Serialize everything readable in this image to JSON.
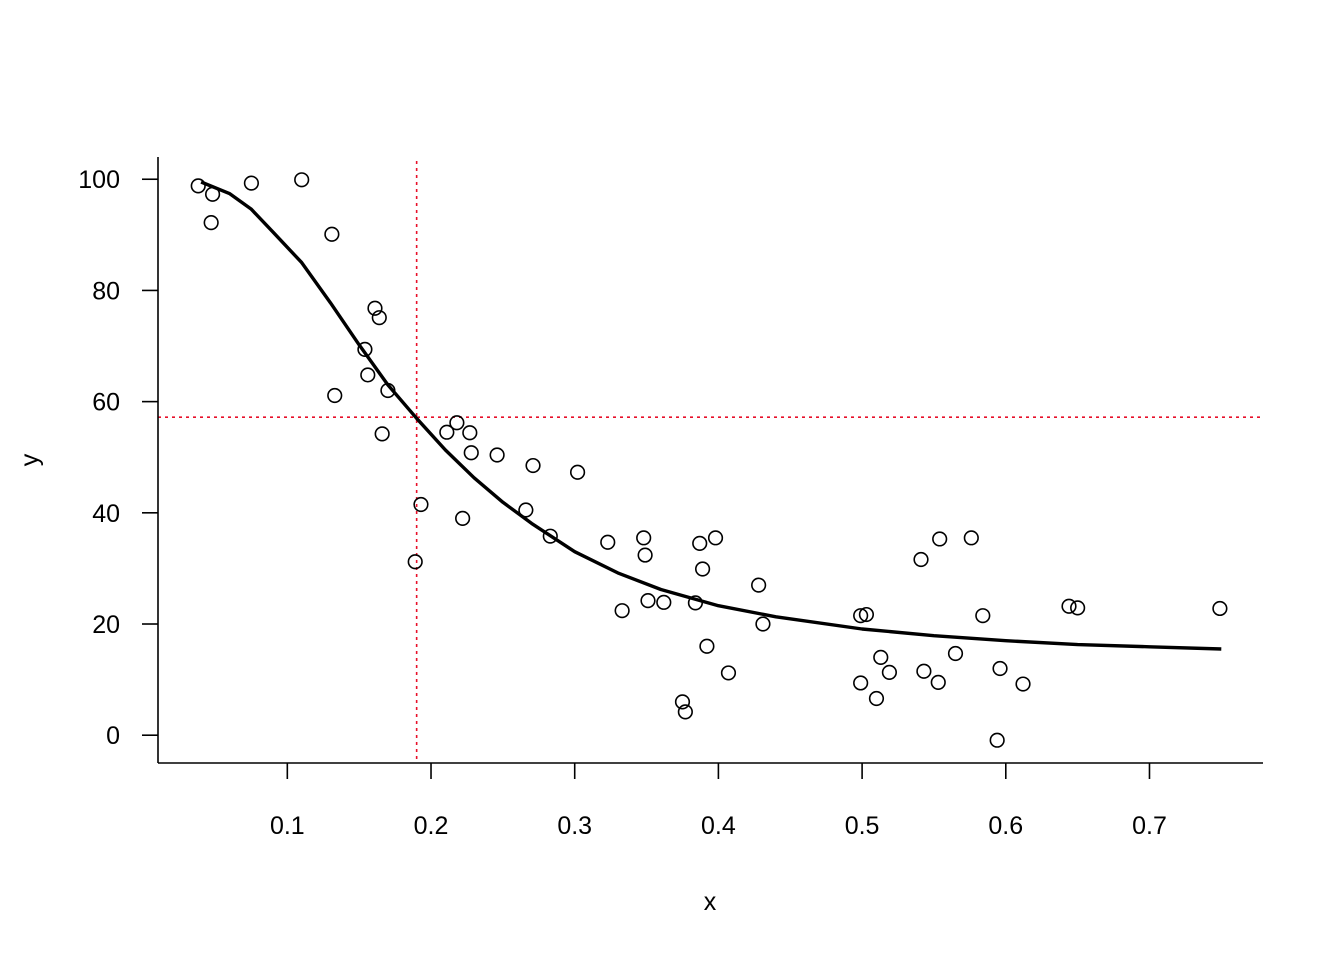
{
  "chart_data": {
    "type": "scatter",
    "title": "",
    "xlabel": "x",
    "ylabel": "y",
    "xlim": [
      0.01,
      0.779
    ],
    "ylim": [
      -5,
      104
    ],
    "x_ticks": [
      0.1,
      0.2,
      0.3,
      0.4,
      0.5,
      0.6,
      0.7
    ],
    "x_tick_labels": [
      "0.1",
      "0.2",
      "0.3",
      "0.4",
      "0.5",
      "0.6",
      "0.7"
    ],
    "y_ticks": [
      0,
      20,
      40,
      60,
      80,
      100
    ],
    "y_tick_labels": [
      "0",
      "20",
      "40",
      "60",
      "80",
      "100"
    ],
    "grid": false,
    "points": [
      {
        "x": 0.038,
        "y": 98.8
      },
      {
        "x": 0.048,
        "y": 97.3
      },
      {
        "x": 0.047,
        "y": 92.2
      },
      {
        "x": 0.075,
        "y": 99.3
      },
      {
        "x": 0.11,
        "y": 99.9
      },
      {
        "x": 0.131,
        "y": 90.1
      },
      {
        "x": 0.161,
        "y": 76.8
      },
      {
        "x": 0.164,
        "y": 75.1
      },
      {
        "x": 0.154,
        "y": 69.4
      },
      {
        "x": 0.156,
        "y": 64.8
      },
      {
        "x": 0.17,
        "y": 62.0
      },
      {
        "x": 0.133,
        "y": 61.1
      },
      {
        "x": 0.166,
        "y": 54.2
      },
      {
        "x": 0.218,
        "y": 56.2
      },
      {
        "x": 0.211,
        "y": 54.5
      },
      {
        "x": 0.227,
        "y": 54.4
      },
      {
        "x": 0.228,
        "y": 50.8
      },
      {
        "x": 0.246,
        "y": 50.4
      },
      {
        "x": 0.271,
        "y": 48.5
      },
      {
        "x": 0.302,
        "y": 47.3
      },
      {
        "x": 0.193,
        "y": 41.5
      },
      {
        "x": 0.222,
        "y": 39.0
      },
      {
        "x": 0.266,
        "y": 40.5
      },
      {
        "x": 0.283,
        "y": 35.8
      },
      {
        "x": 0.189,
        "y": 31.2
      },
      {
        "x": 0.323,
        "y": 34.7
      },
      {
        "x": 0.348,
        "y": 35.5
      },
      {
        "x": 0.349,
        "y": 32.4
      },
      {
        "x": 0.387,
        "y": 34.5
      },
      {
        "x": 0.398,
        "y": 35.5
      },
      {
        "x": 0.389,
        "y": 29.9
      },
      {
        "x": 0.333,
        "y": 22.4
      },
      {
        "x": 0.351,
        "y": 24.2
      },
      {
        "x": 0.362,
        "y": 23.9
      },
      {
        "x": 0.384,
        "y": 23.8
      },
      {
        "x": 0.428,
        "y": 27.0
      },
      {
        "x": 0.431,
        "y": 20.0
      },
      {
        "x": 0.392,
        "y": 16.0
      },
      {
        "x": 0.407,
        "y": 11.2
      },
      {
        "x": 0.375,
        "y": 6.0
      },
      {
        "x": 0.377,
        "y": 4.2
      },
      {
        "x": 0.499,
        "y": 21.5
      },
      {
        "x": 0.503,
        "y": 21.7
      },
      {
        "x": 0.513,
        "y": 14.0
      },
      {
        "x": 0.519,
        "y": 11.3
      },
      {
        "x": 0.499,
        "y": 9.4
      },
      {
        "x": 0.51,
        "y": 6.6
      },
      {
        "x": 0.541,
        "y": 31.6
      },
      {
        "x": 0.554,
        "y": 35.3
      },
      {
        "x": 0.576,
        "y": 35.5
      },
      {
        "x": 0.543,
        "y": 11.5
      },
      {
        "x": 0.553,
        "y": 9.5
      },
      {
        "x": 0.565,
        "y": 14.7
      },
      {
        "x": 0.584,
        "y": 21.5
      },
      {
        "x": 0.596,
        "y": 12.0
      },
      {
        "x": 0.612,
        "y": 9.2
      },
      {
        "x": 0.594,
        "y": -0.9
      },
      {
        "x": 0.644,
        "y": 23.2
      },
      {
        "x": 0.65,
        "y": 22.9
      },
      {
        "x": 0.749,
        "y": 22.8
      }
    ],
    "fitted_curve": [
      {
        "x": 0.04,
        "y": 99.5
      },
      {
        "x": 0.06,
        "y": 97.4
      },
      {
        "x": 0.075,
        "y": 94.6
      },
      {
        "x": 0.09,
        "y": 90.5
      },
      {
        "x": 0.11,
        "y": 85.0
      },
      {
        "x": 0.13,
        "y": 77.8
      },
      {
        "x": 0.15,
        "y": 70.2
      },
      {
        "x": 0.17,
        "y": 63.0
      },
      {
        "x": 0.19,
        "y": 57.0
      },
      {
        "x": 0.21,
        "y": 51.3
      },
      {
        "x": 0.23,
        "y": 46.3
      },
      {
        "x": 0.25,
        "y": 41.9
      },
      {
        "x": 0.27,
        "y": 38.1
      },
      {
        "x": 0.3,
        "y": 33.0
      },
      {
        "x": 0.33,
        "y": 29.2
      },
      {
        "x": 0.36,
        "y": 26.2
      },
      {
        "x": 0.4,
        "y": 23.3
      },
      {
        "x": 0.44,
        "y": 21.3
      },
      {
        "x": 0.5,
        "y": 19.1
      },
      {
        "x": 0.55,
        "y": 17.9
      },
      {
        "x": 0.6,
        "y": 17.0
      },
      {
        "x": 0.65,
        "y": 16.3
      },
      {
        "x": 0.7,
        "y": 15.9
      },
      {
        "x": 0.75,
        "y": 15.5
      }
    ],
    "reference_lines": {
      "vertical_x": 0.19,
      "horizontal_y": 57.2,
      "color": "#e8102a",
      "style": "dotted"
    },
    "point_style": "open-circle",
    "curve_color": "#000000"
  }
}
